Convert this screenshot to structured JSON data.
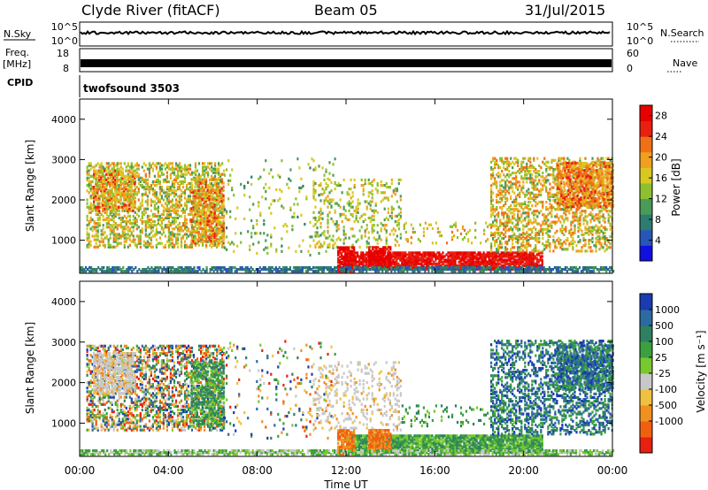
{
  "header": {
    "station": "Clyde River (fitACF)",
    "beam": "Beam 05",
    "date": "31/Jul/2015"
  },
  "side_labels": {
    "nsky": "N.Sky",
    "freq": "Freq.",
    "freq_unit": "[MHz]",
    "cpid": "CPID",
    "nsearch": "N.Search",
    "nave": "Nave"
  },
  "control_program": "twofsound 3503",
  "chart_data": [
    {
      "type": "line",
      "panel": "noise",
      "left_ticks": [
        "10^5",
        "10^0"
      ],
      "right_ticks": [
        "10^5",
        "10^0"
      ],
      "description_series": [
        {
          "name": "N.Sky",
          "style": "solid"
        },
        {
          "name": "N.Search",
          "style": "dotted"
        }
      ]
    },
    {
      "type": "line",
      "panel": "frequency",
      "left_ticks": [
        "18",
        "8"
      ],
      "right_ticks": [
        "60",
        "0"
      ],
      "description_series": [
        {
          "name": "Freq.",
          "style": "solid"
        },
        {
          "name": "Nave",
          "style": "dotted"
        }
      ]
    },
    {
      "type": "heatmap",
      "panel": "power",
      "xlabel": "",
      "ylabel": "Slant Range [km]",
      "xlim": [
        0,
        24
      ],
      "ylim": [
        180,
        4500
      ],
      "yticks": [
        "1000",
        "2000",
        "3000",
        "4000"
      ],
      "colorbar": {
        "label": "Power [dB]",
        "ticks": [
          "4",
          "8",
          "12",
          "16",
          "20",
          "24",
          "28"
        ],
        "range": [
          0,
          30
        ],
        "colors": [
          "#1010e0",
          "#2855b8",
          "#2e7c70",
          "#4a9a58",
          "#8cc030",
          "#d8c820",
          "#f0a020",
          "#f07018",
          "#e82010",
          "#e80000"
        ]
      }
    },
    {
      "type": "heatmap",
      "panel": "velocity",
      "xlabel": "Time UT",
      "ylabel": "Slant Range [km]",
      "xlim": [
        0,
        24
      ],
      "ylim": [
        180,
        4500
      ],
      "xticks": [
        "00:00",
        "04:00",
        "08:00",
        "12:00",
        "16:00",
        "20:00",
        "00:00"
      ],
      "yticks": [
        "1000",
        "2000",
        "3000",
        "4000"
      ],
      "colorbar": {
        "label": "Velocity [m s⁻¹]",
        "ticks": [
          "1000",
          "500",
          "100",
          "25",
          "-25",
          "-100",
          "-500",
          "-1000"
        ],
        "colors": [
          "#1a3cb0",
          "#2c6aa0",
          "#2e8060",
          "#3aa040",
          "#78c830",
          "#c8c8c8",
          "#f0c040",
          "#f09020",
          "#f06010",
          "#e82010"
        ]
      }
    }
  ]
}
